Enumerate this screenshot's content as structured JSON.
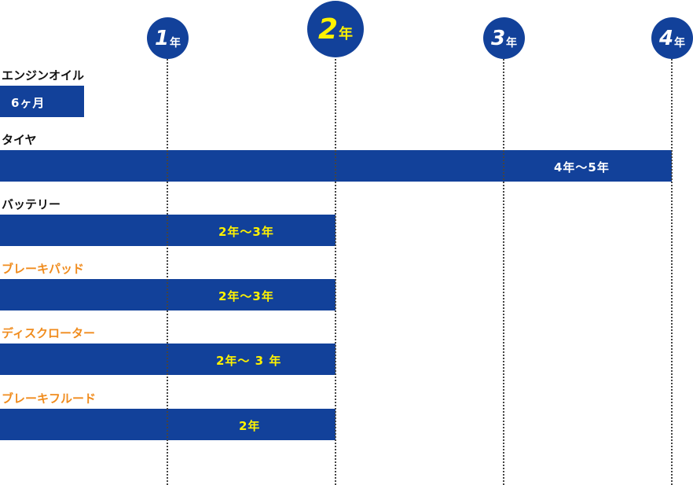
{
  "colors": {
    "bar": "#12419a",
    "highlight": "#fff200",
    "accent_label": "#f08c1e",
    "text": "#111111"
  },
  "years": [
    {
      "num": "1",
      "unit": "年"
    },
    {
      "num": "2",
      "unit": "年"
    },
    {
      "num": "3",
      "unit": "年"
    },
    {
      "num": "4",
      "unit": "年"
    }
  ],
  "items": [
    {
      "label": "エンジンオイル",
      "period": "6ヶ月"
    },
    {
      "label": "タイヤ",
      "period": "4年〜5年"
    },
    {
      "label": "バッテリー",
      "period": "2年〜3年"
    },
    {
      "label": "ブレーキパッド",
      "period": "2年〜3年"
    },
    {
      "label": "ディスクローター",
      "period": "2年〜 3 年"
    },
    {
      "label": "ブレーキフルード",
      "period": "2年"
    }
  ]
}
